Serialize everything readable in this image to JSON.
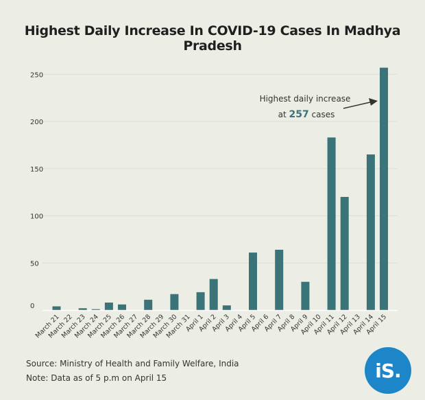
{
  "chart_data": {
    "type": "bar",
    "title": "Highest Daily Increase In COVID-19 Cases In Madhya Pradesh",
    "categories": [
      "March 21",
      "March 22",
      "March 23",
      "March 24",
      "March 25",
      "March 26",
      "March 27",
      "March 28",
      "March 29",
      "March 30",
      "March 31",
      "April 1",
      "April 2",
      "April 3",
      "April 4",
      "April 5",
      "April 6",
      "April 7",
      "April 8",
      "April 9",
      "April 10",
      "April 11",
      "April 12",
      "April 13",
      "April 14",
      "April 15"
    ],
    "values": [
      4,
      0,
      2,
      1,
      8,
      6,
      0,
      11,
      0,
      17,
      0,
      19,
      33,
      5,
      0,
      61,
      0,
      64,
      0,
      30,
      0,
      183,
      120,
      0,
      165,
      257
    ],
    "yticks": [
      0,
      50,
      100,
      150,
      200,
      250
    ],
    "ylim": [
      0,
      260
    ],
    "grid": true,
    "bar_color": "#3a7478",
    "annotation": {
      "line1": "Highest daily increase",
      "prefix": "at",
      "value": "257",
      "suffix": "cases"
    }
  },
  "footer": {
    "source": "Source: Ministry of Health and Family Welfare, India",
    "note": "Note: Data as of 5 p.m on April 15"
  },
  "logo": {
    "text": "iS."
  }
}
